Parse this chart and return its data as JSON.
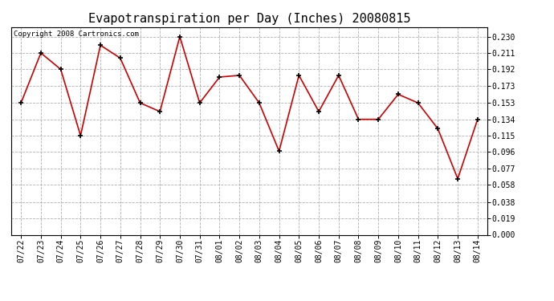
{
  "title": "Evapotranspiration per Day (Inches) 20080815",
  "copyright": "Copyright 2008 Cartronics.com",
  "dates": [
    "07/22",
    "07/23",
    "07/24",
    "07/25",
    "07/26",
    "07/27",
    "07/28",
    "07/29",
    "07/30",
    "07/31",
    "08/01",
    "08/02",
    "08/03",
    "08/04",
    "08/05",
    "08/06",
    "08/07",
    "08/08",
    "08/09",
    "08/10",
    "08/11",
    "08/12",
    "08/13",
    "08/14"
  ],
  "values": [
    0.153,
    0.211,
    0.192,
    0.115,
    0.22,
    0.205,
    0.153,
    0.143,
    0.23,
    0.153,
    0.183,
    0.185,
    0.153,
    0.097,
    0.185,
    0.143,
    0.185,
    0.134,
    0.134,
    0.163,
    0.153,
    0.123,
    0.065,
    0.134
  ],
  "line_color": "#cc0000",
  "marker_color": "#000000",
  "background_color": "#ffffff",
  "grid_color": "#b0b0b0",
  "yticks": [
    0.0,
    0.019,
    0.038,
    0.058,
    0.077,
    0.096,
    0.115,
    0.134,
    0.153,
    0.173,
    0.192,
    0.211,
    0.23
  ],
  "ylim": [
    0.0,
    0.241
  ],
  "title_fontsize": 11,
  "tick_fontsize": 7,
  "copyright_fontsize": 6.5
}
